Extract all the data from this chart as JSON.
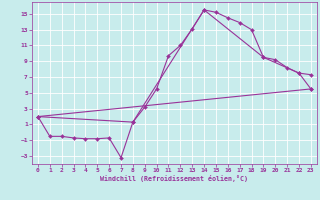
{
  "xlabel": "Windchill (Refroidissement éolien,°C)",
  "bg_color": "#c8ecec",
  "line_color": "#993399",
  "grid_color": "#ffffff",
  "xlim": [
    -0.5,
    23.5
  ],
  "ylim": [
    -4,
    16.5
  ],
  "xticks": [
    0,
    1,
    2,
    3,
    4,
    5,
    6,
    7,
    8,
    9,
    10,
    11,
    12,
    13,
    14,
    15,
    16,
    17,
    18,
    19,
    20,
    21,
    22,
    23
  ],
  "yticks": [
    -3,
    -1,
    1,
    3,
    5,
    7,
    9,
    11,
    13,
    15
  ],
  "line1_x": [
    0,
    1,
    2,
    3,
    4,
    5,
    6,
    7,
    8,
    9,
    10,
    11,
    12,
    13,
    14,
    15,
    16,
    17,
    18,
    19,
    20,
    21,
    22,
    23
  ],
  "line1_y": [
    2,
    -0.5,
    -0.5,
    -0.7,
    -0.8,
    -0.8,
    -0.7,
    -3.2,
    1.3,
    3.2,
    5.5,
    9.7,
    11.0,
    13.1,
    15.5,
    15.2,
    14.5,
    13.9,
    13.0,
    9.5,
    9.2,
    8.2,
    7.5,
    7.3
  ],
  "line2_x": [
    0,
    8,
    14,
    19,
    22,
    23
  ],
  "line2_y": [
    2,
    1.3,
    15.5,
    9.5,
    7.5,
    5.5
  ],
  "line3_x": [
    0,
    23
  ],
  "line3_y": [
    2,
    5.5
  ]
}
